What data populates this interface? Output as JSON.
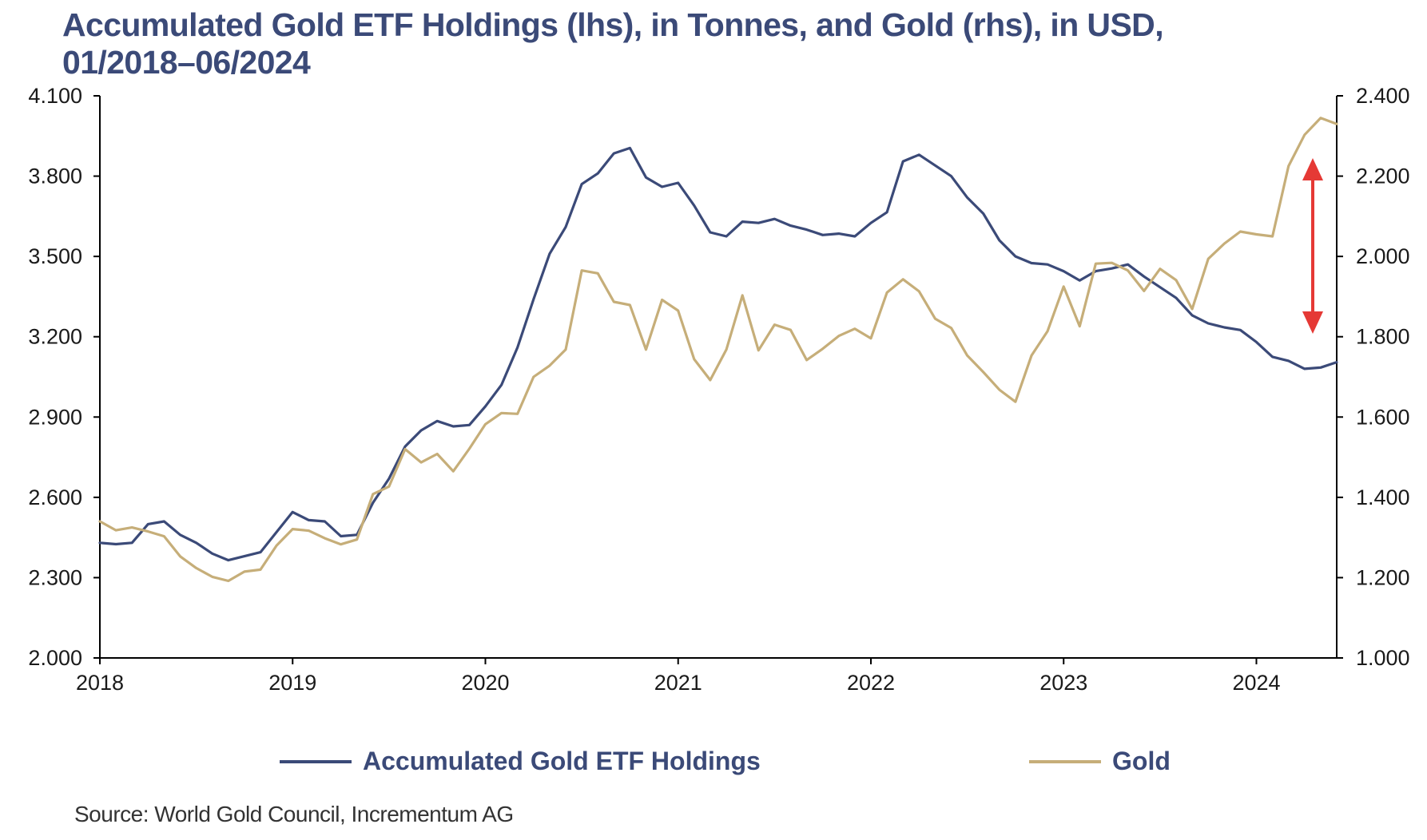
{
  "title_line1": "Accumulated Gold ETF Holdings (lhs), in Tonnes, and Gold (rhs), in USD,",
  "title_line2": "01/2018–06/2024",
  "source": "Source: World Gold Council, Incrementum AG",
  "chart_data": {
    "type": "line",
    "title": "Accumulated Gold ETF Holdings (lhs), in Tonnes, and Gold (rhs), in USD, 01/2018–06/2024",
    "x_start": "2018-01",
    "x_end": "2024-06",
    "x_ticks": [
      "2018",
      "2019",
      "2020",
      "2021",
      "2022",
      "2023",
      "2024"
    ],
    "y_left": {
      "min": 2000,
      "max": 4100,
      "ticks": [
        "2.000",
        "2.300",
        "2.600",
        "2.900",
        "3.200",
        "3.500",
        "3.800",
        "4.100"
      ]
    },
    "y_right": {
      "min": 1000,
      "max": 2400,
      "ticks": [
        "1.000",
        "1.200",
        "1.400",
        "1.600",
        "1.800",
        "2.000",
        "2.200",
        "2.400"
      ]
    },
    "grid": false,
    "legend_position": "bottom",
    "series": [
      {
        "name": "Accumulated Gold ETF Holdings",
        "axis": "left",
        "color": "#3b4a78",
        "values": [
          2430,
          2425,
          2430,
          2500,
          2510,
          2460,
          2430,
          2390,
          2365,
          2380,
          2395,
          2470,
          2545,
          2515,
          2510,
          2455,
          2460,
          2580,
          2670,
          2790,
          2850,
          2885,
          2865,
          2870,
          2940,
          3020,
          3160,
          3340,
          3510,
          3610,
          3770,
          3810,
          3885,
          3905,
          3795,
          3760,
          3775,
          3690,
          3590,
          3575,
          3630,
          3625,
          3640,
          3615,
          3600,
          3580,
          3585,
          3575,
          3625,
          3665,
          3855,
          3880,
          3840,
          3800,
          3720,
          3660,
          3560,
          3500,
          3475,
          3470,
          3445,
          3410,
          3445,
          3455,
          3470,
          3425,
          3385,
          3345,
          3280,
          3250,
          3235,
          3225,
          3180,
          3125,
          3110,
          3080,
          3085,
          3105
        ]
      },
      {
        "name": "Gold",
        "axis": "right",
        "color": "#c6ae79",
        "values": [
          1340,
          1318,
          1325,
          1315,
          1303,
          1253,
          1224,
          1202,
          1192,
          1215,
          1220,
          1280,
          1321,
          1317,
          1298,
          1283,
          1295,
          1408,
          1427,
          1520,
          1487,
          1508,
          1465,
          1521,
          1582,
          1610,
          1608,
          1700,
          1728,
          1768,
          1965,
          1958,
          1887,
          1879,
          1768,
          1892,
          1865,
          1744,
          1692,
          1768,
          1903,
          1766,
          1830,
          1817,
          1742,
          1770,
          1802,
          1820,
          1796,
          1910,
          1943,
          1913,
          1845,
          1822,
          1753,
          1712,
          1668,
          1638,
          1753,
          1814,
          1925,
          1826,
          1982,
          1984,
          1965,
          1914,
          1969,
          1941,
          1869,
          1994,
          2032,
          2062,
          2055,
          2050,
          2225,
          2303,
          2345,
          2330
        ]
      }
    ],
    "annotations": [
      {
        "type": "double-arrow",
        "color": "#e53935",
        "meaning": "gap between gold price and ETF holdings"
      }
    ]
  }
}
